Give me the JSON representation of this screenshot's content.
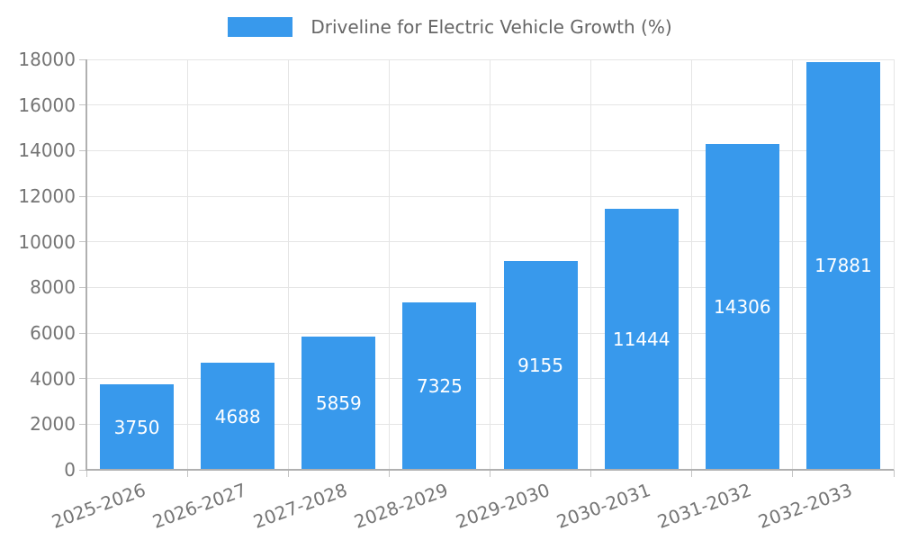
{
  "legend": {
    "label": "Driveline for Electric Vehicle Growth (%)"
  },
  "chart_data": {
    "type": "bar",
    "title": "Driveline for Electric Vehicle Growth (%)",
    "categories": [
      "2025-2026",
      "2026-2027",
      "2027-2028",
      "2028-2029",
      "2029-2030",
      "2030-2031",
      "2031-2032",
      "2032-2033"
    ],
    "values": [
      3750,
      4688,
      5859,
      7325,
      9155,
      11444,
      14306,
      17881
    ],
    "xlabel": "",
    "ylabel": "",
    "ylim": [
      0,
      18000
    ],
    "ytick_step": 2000,
    "grid": true,
    "legend_position": "top-center",
    "bar_label_position": "inside-center",
    "colors": {
      "bar": "#3899EC",
      "bar_label": "#FFFFFF",
      "grid": "#E5E5E5",
      "axis_line": "#B0B0B0",
      "tick_mark": "#C4C4C4",
      "tick_label": "#757575",
      "legend_text": "#666666",
      "background": "#FFFFFF"
    }
  }
}
